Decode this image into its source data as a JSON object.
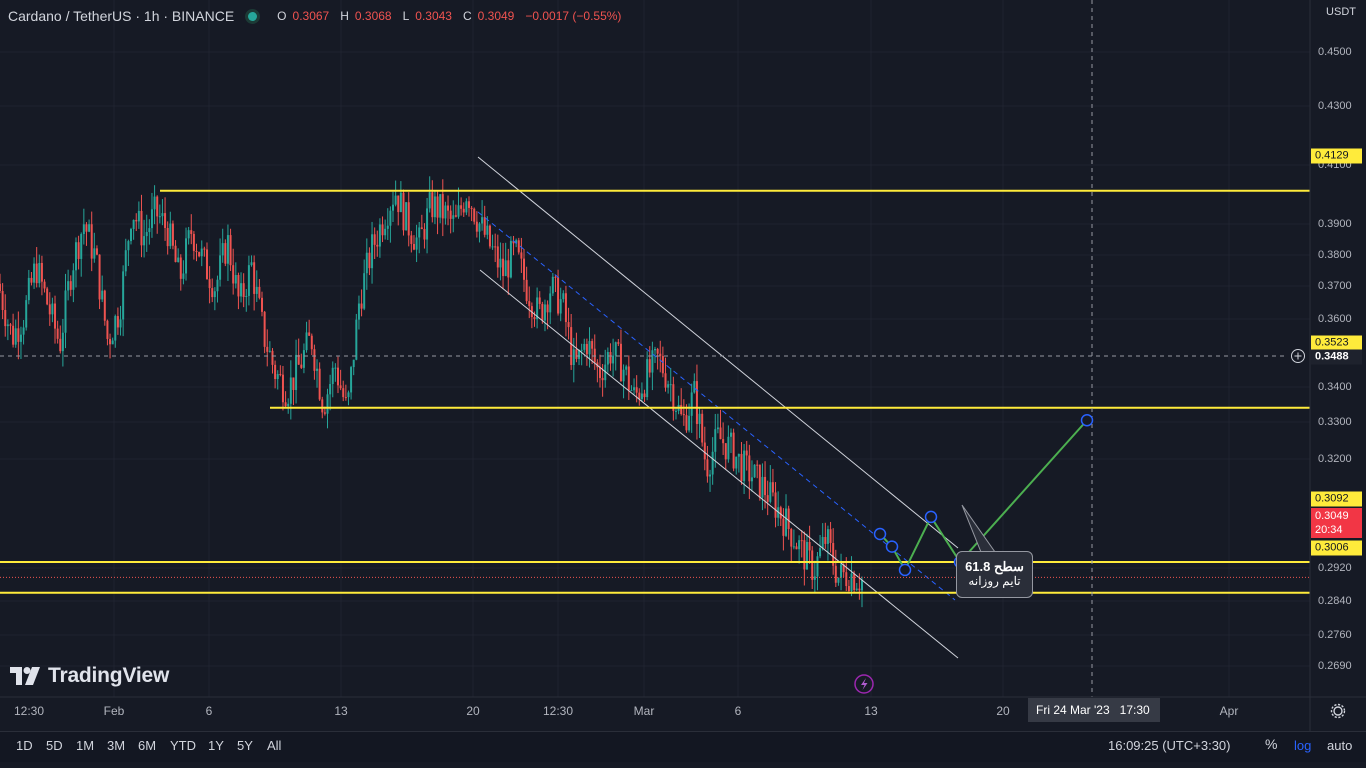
{
  "header": {
    "symbol": "Cardano / TetherUS · 1h · BINANCE",
    "o_label": "O",
    "o_value": "0.3067",
    "h_label": "H",
    "h_value": "0.3068",
    "l_label": "L",
    "l_value": "0.3043",
    "c_label": "C",
    "c_value": "0.3049",
    "change": "−0.0017 (−0.55%)"
  },
  "currency": "USDT",
  "price_axis": {
    "ticks": [
      "0.4500",
      "0.4300",
      "0.4100",
      "0.3900",
      "0.3800",
      "0.3700",
      "0.3600",
      "0.3400",
      "0.3300",
      "0.3200",
      "0.2920",
      "0.2840",
      "0.2760",
      "0.2690"
    ],
    "tags": {
      "level_top": "0.4129",
      "level_mid": "0.3523",
      "crosshair": "0.3488",
      "level_low1": "0.3092",
      "last_price": "0.3049",
      "countdown": "20:34",
      "level_low2": "0.3006"
    }
  },
  "time_axis": {
    "labels": [
      "12:30",
      "Feb",
      "6",
      "13",
      "20",
      "12:30",
      "Mar",
      "6",
      "13",
      "20",
      "Apr"
    ],
    "crosshair_date": "Fri 24 Mar '23",
    "crosshair_time": "17:30"
  },
  "callout": {
    "line1": "سطح 61.8",
    "line2": "تایم روزانه"
  },
  "logo": "TradingView",
  "ranges": [
    "1D",
    "5D",
    "1M",
    "3M",
    "6M",
    "YTD",
    "1Y",
    "5Y",
    "All"
  ],
  "clock": "16:09:25 (UTC+3:30)",
  "scale_buttons": {
    "percent": "%",
    "log": "log",
    "auto": "auto"
  },
  "colors": {
    "background": "#161a25",
    "up": "#26a69a",
    "down": "#ef5350",
    "level": "#ffeb3b",
    "channel": "#d1d4dc",
    "projection": "#4caf50"
  },
  "chart_data": {
    "type": "line",
    "title": "Cardano / TetherUS · 1h · BINANCE",
    "ylim": [
      0.262,
      0.462
    ],
    "grid": true,
    "series": [
      {
        "values": [
          0.385,
          0.372,
          0.378,
          0.392,
          0.381,
          0.37,
          0.392,
          0.404,
          0.394,
          0.371,
          0.38,
          0.408,
          0.4,
          0.407,
          0.402,
          0.388,
          0.402,
          0.393,
          0.386,
          0.399,
          0.381,
          0.392,
          0.373,
          0.362,
          0.357,
          0.364,
          0.372,
          0.353,
          0.364,
          0.351,
          0.382,
          0.396,
          0.405,
          0.413,
          0.404,
          0.398,
          0.409,
          0.407,
          0.403,
          0.413,
          0.404,
          0.397,
          0.39,
          0.396,
          0.386,
          0.378,
          0.386,
          0.381,
          0.363,
          0.371,
          0.362,
          0.368,
          0.364,
          0.355,
          0.361,
          0.366,
          0.359,
          0.348,
          0.356,
          0.336,
          0.344,
          0.341,
          0.336,
          0.333,
          0.329,
          0.324,
          0.318,
          0.312,
          0.307,
          0.316,
          0.305,
          0.306,
          0.304
        ]
      },
      {
        "values": [
          0.3049,
          0.3135,
          0.307,
          0.3218,
          0.3092,
          0.3488
        ]
      }
    ],
    "levels": [
      0.4129,
      0.3523,
      0.3092,
      0.3006
    ],
    "annotations": [
      "سطح 61.8",
      "تایم روزانه"
    ]
  }
}
